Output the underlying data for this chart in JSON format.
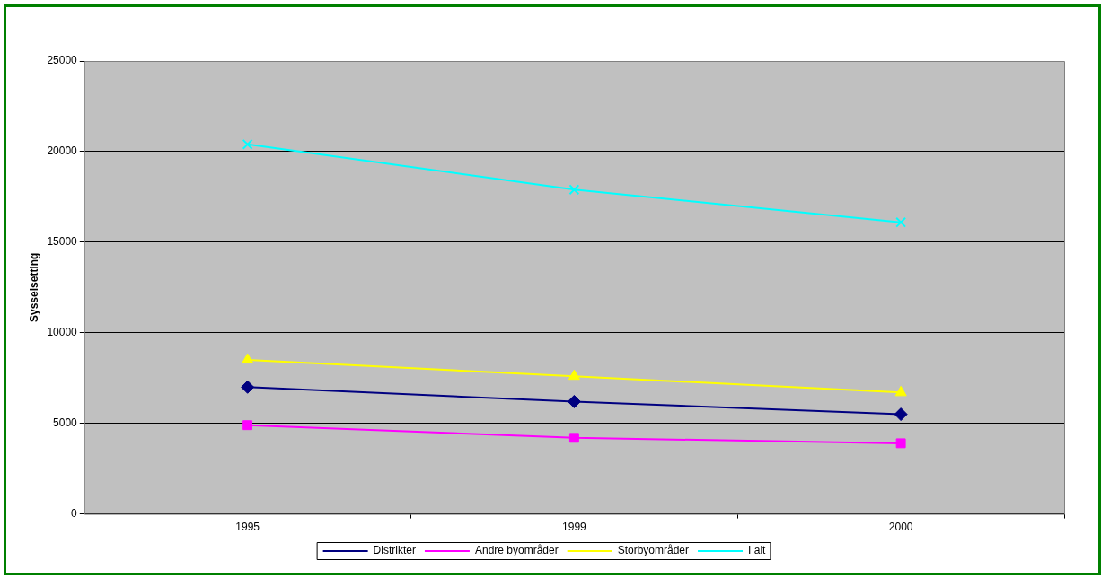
{
  "chart_data": {
    "type": "line",
    "ylabel": "Sysselsetting",
    "categories": [
      "1995",
      "1999",
      "2000"
    ],
    "series": [
      {
        "name": "Distrikter",
        "color": "#000080",
        "marker": "diamond",
        "values": [
          7000,
          6200,
          5500
        ]
      },
      {
        "name": "Andre byområder",
        "color": "#ff00ff",
        "marker": "square",
        "values": [
          4900,
          4200,
          3900
        ]
      },
      {
        "name": "Storbyområder",
        "color": "#ffff00",
        "marker": "triangle",
        "values": [
          8500,
          7600,
          6700
        ]
      },
      {
        "name": "I alt",
        "color": "#00ffff",
        "marker": "cross",
        "values": [
          20400,
          17900,
          16100
        ]
      }
    ],
    "ylim": [
      0,
      25000
    ],
    "yticks": [
      0,
      5000,
      10000,
      15000,
      20000,
      25000
    ],
    "grid": "y",
    "legend": "bottom",
    "line_style": "solid"
  }
}
